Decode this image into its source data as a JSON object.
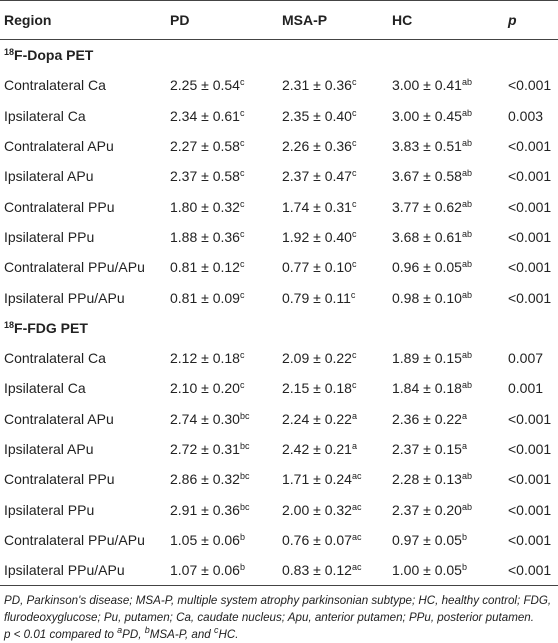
{
  "table": {
    "header": [
      "Region",
      "PD",
      "MSA-P",
      "HC",
      "p"
    ],
    "sections": [
      {
        "title": {
          "sup": "18",
          "text": "F-Dopa PET"
        },
        "rows": [
          [
            "Contralateral Ca",
            {
              "text": "2.25 ± 0.54",
              "sup": "c"
            },
            {
              "text": "2.31 ± 0.36",
              "sup": "c"
            },
            {
              "text": "3.00 ± 0.41",
              "sup": "ab"
            },
            "<0.001"
          ],
          [
            "Ipsilateral Ca",
            {
              "text": "2.34 ± 0.61",
              "sup": "c"
            },
            {
              "text": "2.35 ± 0.40",
              "sup": "c"
            },
            {
              "text": "3.00 ± 0.45",
              "sup": "ab"
            },
            "0.003"
          ],
          [
            "Contralateral APu",
            {
              "text": "2.27 ± 0.58",
              "sup": "c"
            },
            {
              "text": "2.26 ± 0.36",
              "sup": "c"
            },
            {
              "text": "3.83 ± 0.51",
              "sup": "ab"
            },
            "<0.001"
          ],
          [
            "Ipsilateral APu",
            {
              "text": "2.37 ± 0.58",
              "sup": "c"
            },
            {
              "text": "2.37 ± 0.47",
              "sup": "c"
            },
            {
              "text": "3.67 ± 0.58",
              "sup": "ab"
            },
            "<0.001"
          ],
          [
            "Contralateral PPu",
            {
              "text": "1.80 ± 0.32",
              "sup": "c"
            },
            {
              "text": "1.74 ± 0.31",
              "sup": "c"
            },
            {
              "text": "3.77 ± 0.62",
              "sup": "ab"
            },
            "<0.001"
          ],
          [
            "Ipsilateral PPu",
            {
              "text": "1.88 ± 0.36",
              "sup": "c"
            },
            {
              "text": "1.92 ± 0.40",
              "sup": "c"
            },
            {
              "text": "3.68 ± 0.61",
              "sup": "ab"
            },
            "<0.001"
          ],
          [
            "Contralateral PPu/APu",
            {
              "text": "0.81 ± 0.12",
              "sup": "c"
            },
            {
              "text": "0.77 ± 0.10",
              "sup": "c"
            },
            {
              "text": "0.96 ± 0.05",
              "sup": "ab"
            },
            "<0.001"
          ],
          [
            "Ipsilateral PPu/APu",
            {
              "text": "0.81 ± 0.09",
              "sup": "c"
            },
            {
              "text": "0.79 ± 0.11",
              "sup": "c"
            },
            {
              "text": "0.98 ± 0.10",
              "sup": "ab"
            },
            "<0.001"
          ]
        ]
      },
      {
        "title": {
          "sup": "18",
          "text": "F-FDG PET"
        },
        "rows": [
          [
            "Contralateral Ca",
            {
              "text": "2.12 ± 0.18",
              "sup": "c"
            },
            {
              "text": "2.09 ± 0.22",
              "sup": "c"
            },
            {
              "text": "1.89 ± 0.15",
              "sup": "ab"
            },
            "0.007"
          ],
          [
            "Ipsilateral Ca",
            {
              "text": "2.10 ± 0.20",
              "sup": "c"
            },
            {
              "text": "2.15 ± 0.18",
              "sup": "c"
            },
            {
              "text": "1.84 ± 0.18",
              "sup": "ab"
            },
            "0.001"
          ],
          [
            "Contralateral APu",
            {
              "text": "2.74 ± 0.30",
              "sup": "bc"
            },
            {
              "text": "2.24 ± 0.22",
              "sup": "a"
            },
            {
              "text": "2.36 ± 0.22",
              "sup": "a"
            },
            "<0.001"
          ],
          [
            "Ipsilateral APu",
            {
              "text": "2.72 ± 0.31",
              "sup": "bc"
            },
            {
              "text": "2.42 ± 0.21",
              "sup": "a"
            },
            {
              "text": "2.37 ± 0.15",
              "sup": "a"
            },
            "<0.001"
          ],
          [
            "Contralateral PPu",
            {
              "text": "2.86 ± 0.32",
              "sup": "bc"
            },
            {
              "text": "1.71 ± 0.24",
              "sup": "ac"
            },
            {
              "text": "2.28 ± 0.13",
              "sup": "ab"
            },
            "<0.001"
          ],
          [
            "Ipsilateral PPu",
            {
              "text": "2.91 ± 0.36",
              "sup": "bc"
            },
            {
              "text": "2.00 ± 0.32",
              "sup": "ac"
            },
            {
              "text": "2.37 ± 0.20",
              "sup": "ab"
            },
            "<0.001"
          ],
          [
            "Contralateral PPu/APu",
            {
              "text": "1.05 ± 0.06",
              "sup": "b"
            },
            {
              "text": "0.76 ± 0.07",
              "sup": "ac"
            },
            {
              "text": "0.97 ± 0.05",
              "sup": "b"
            },
            "<0.001"
          ],
          [
            "Ipsilateral PPu/APu",
            {
              "text": "1.07 ± 0.06",
              "sup": "b"
            },
            {
              "text": "0.83 ± 0.12",
              "sup": "ac"
            },
            {
              "text": "1.00 ± 0.05",
              "sup": "b"
            },
            "<0.001"
          ]
        ]
      }
    ]
  },
  "footnotes": {
    "abbreviations": "PD, Parkinson's disease; MSA-P, multiple system atrophy parkinsonian subtype; HC, healthy control; FDG, flurodeoxyglucose; Pu, putamen; Ca, caudate nucleus; Apu, anterior putamen; PPu, posterior putamen.",
    "significance": [
      {
        "text": "p < 0.01 compared to "
      },
      {
        "sup": "a"
      },
      {
        "text": "PD, "
      },
      {
        "sup": "b"
      },
      {
        "text": "MSA-P, and "
      },
      {
        "sup": "c"
      },
      {
        "text": "HC."
      }
    ]
  }
}
